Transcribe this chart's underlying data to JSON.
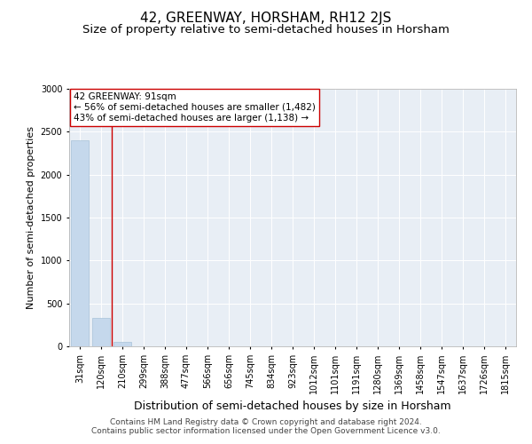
{
  "title": "42, GREENWAY, HORSHAM, RH12 2JS",
  "subtitle": "Size of property relative to semi-detached houses in Horsham",
  "xlabel": "Distribution of semi-detached houses by size in Horsham",
  "ylabel": "Number of semi-detached properties",
  "categories": [
    "31sqm",
    "120sqm",
    "210sqm",
    "299sqm",
    "388sqm",
    "477sqm",
    "566sqm",
    "656sqm",
    "745sqm",
    "834sqm",
    "923sqm",
    "1012sqm",
    "1101sqm",
    "1191sqm",
    "1280sqm",
    "1369sqm",
    "1458sqm",
    "1547sqm",
    "1637sqm",
    "1726sqm",
    "1815sqm"
  ],
  "values": [
    2400,
    330,
    50,
    2,
    1,
    0,
    0,
    0,
    0,
    0,
    0,
    0,
    0,
    0,
    0,
    0,
    0,
    0,
    0,
    0,
    0
  ],
  "bar_color": "#c5d8ec",
  "bar_edge_color": "#a8c2d8",
  "vline_color": "#cc0000",
  "annotation_text": "42 GREENWAY: 91sqm\n← 56% of semi-detached houses are smaller (1,482)\n43% of semi-detached houses are larger (1,138) →",
  "annotation_box_color": "#ffffff",
  "annotation_box_edge": "#cc0000",
  "ylim": [
    0,
    3000
  ],
  "yticks": [
    0,
    500,
    1000,
    1500,
    2000,
    2500,
    3000
  ],
  "bg_color": "#e8eef5",
  "footer_line1": "Contains HM Land Registry data © Crown copyright and database right 2024.",
  "footer_line2": "Contains public sector information licensed under the Open Government Licence v3.0.",
  "title_fontsize": 11,
  "subtitle_fontsize": 9.5,
  "xlabel_fontsize": 9,
  "ylabel_fontsize": 8,
  "tick_fontsize": 7,
  "annotation_fontsize": 7.5,
  "footer_fontsize": 6.5
}
